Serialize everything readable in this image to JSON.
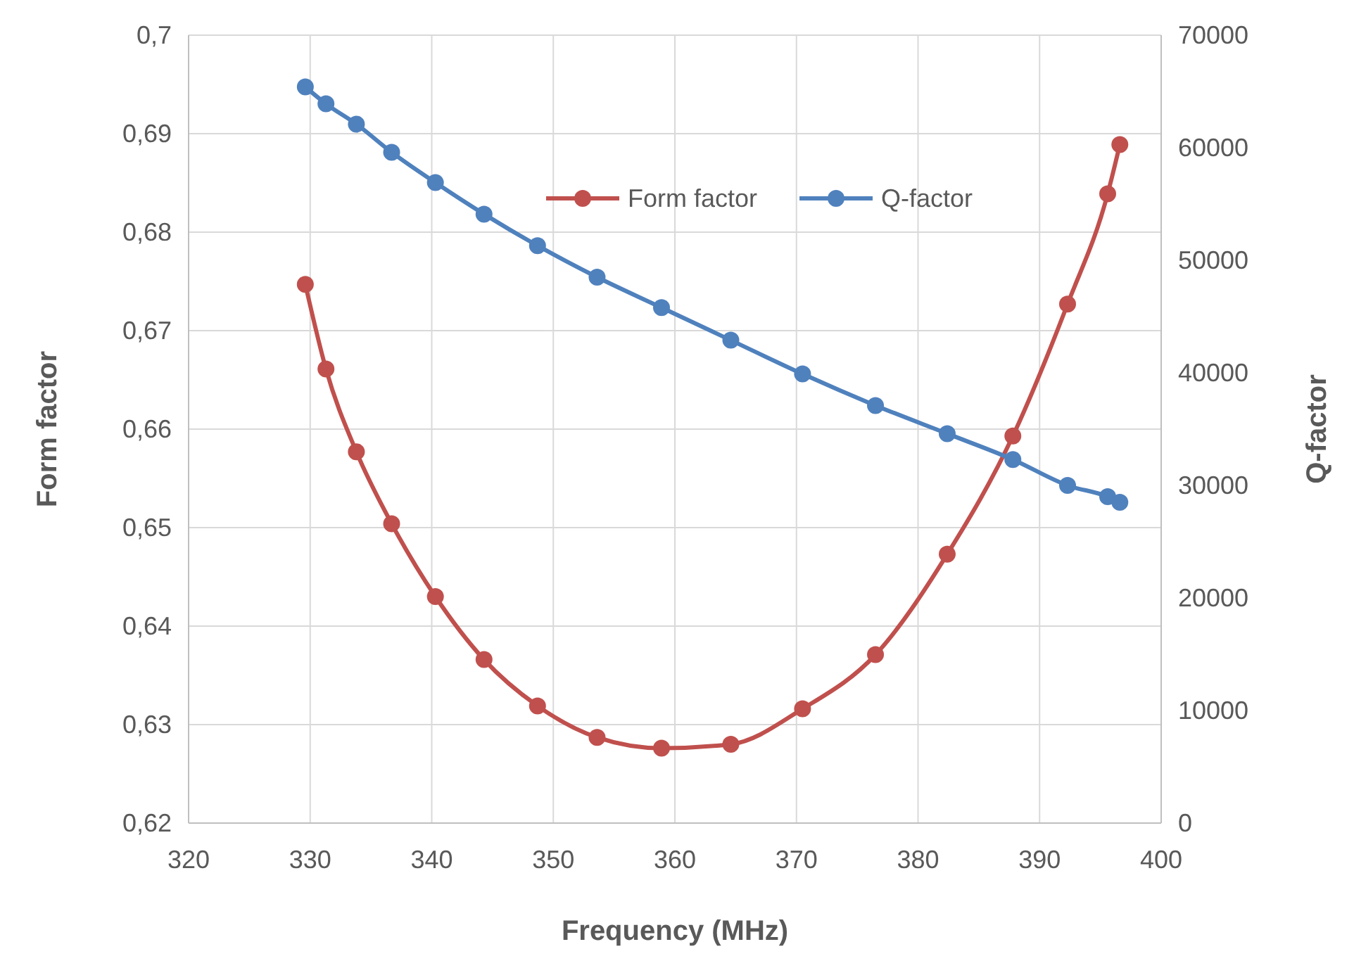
{
  "chart_data": {
    "type": "line",
    "xlabel": "Frequency (MHz)",
    "ylabel": "Form factor",
    "y2label": "Q-factor",
    "xlim": [
      320,
      400
    ],
    "xticks": [
      320,
      330,
      340,
      350,
      360,
      370,
      380,
      390,
      400
    ],
    "ylim": [
      0.62,
      0.7
    ],
    "yticks": [
      {
        "value": 0.62,
        "label": "0,62"
      },
      {
        "value": 0.63,
        "label": "0,63"
      },
      {
        "value": 0.64,
        "label": "0,64"
      },
      {
        "value": 0.65,
        "label": "0,65"
      },
      {
        "value": 0.66,
        "label": "0,66"
      },
      {
        "value": 0.67,
        "label": "0,67"
      },
      {
        "value": 0.68,
        "label": "0,68"
      },
      {
        "value": 0.69,
        "label": "0,69"
      },
      {
        "value": 0.7,
        "label": "0,7"
      }
    ],
    "y2lim": [
      0,
      70000
    ],
    "y2ticks": [
      0,
      10000,
      20000,
      30000,
      40000,
      50000,
      60000,
      70000
    ],
    "grid": true,
    "legend": "top",
    "marker": "circle",
    "line_style": "solid",
    "x": [
      329.6,
      331.3,
      333.8,
      336.7,
      340.3,
      344.3,
      348.7,
      353.6,
      358.9,
      364.6,
      370.5,
      376.5,
      382.4,
      387.8,
      392.3,
      395.6,
      396.6
    ],
    "series": [
      {
        "name": "Form factor",
        "color": "#c0504d",
        "values": [
          0.6747,
          0.6661,
          0.6577,
          0.6504,
          0.643,
          0.6366,
          0.6319,
          0.6287,
          0.6276,
          0.628,
          0.6316,
          0.6371,
          0.6473,
          0.6593,
          0.6727,
          0.6839,
          0.6889
        ]
      },
      {
        "name": "Q-factor",
        "color": "#4f81bd",
        "axis": "y2",
        "values": [
          65400,
          63900,
          62100,
          59600,
          56900,
          54100,
          51300,
          48500,
          45800,
          42900,
          39900,
          37100,
          34600,
          32300,
          30000,
          29000,
          28500
        ]
      }
    ]
  }
}
